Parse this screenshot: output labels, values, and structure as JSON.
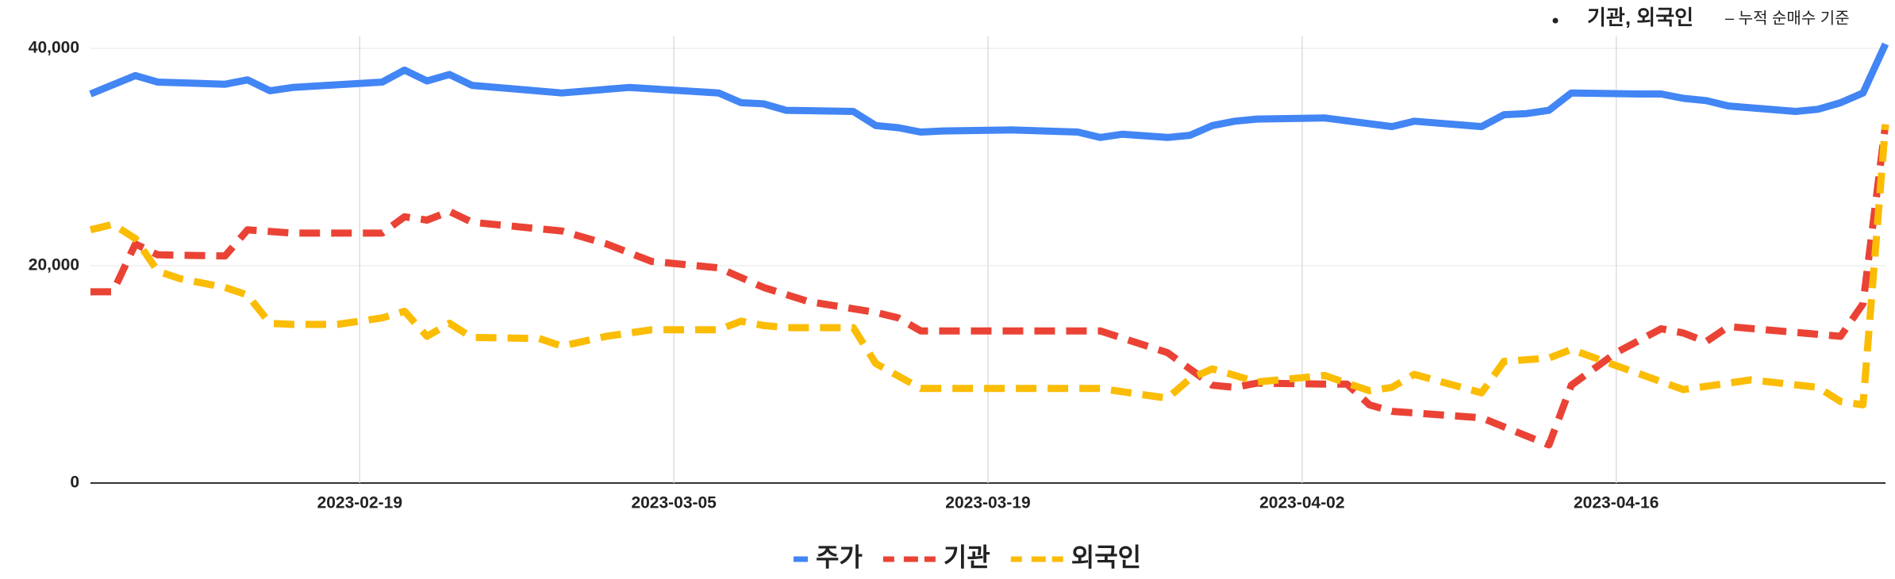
{
  "chart_data": {
    "type": "line",
    "annotation": {
      "label": "기관, 외국인",
      "note": "– 누적 순매수 기준"
    },
    "xlim": [
      "2023-02-07",
      "2023-04-28"
    ],
    "xticks": [
      "2023-02-19",
      "2023-03-05",
      "2023-03-19",
      "2023-04-02",
      "2023-04-16"
    ],
    "ylim": [
      0,
      40000
    ],
    "yticks": [
      {
        "value": 0,
        "label": "0"
      },
      {
        "value": 20000,
        "label": "20,000"
      },
      {
        "value": 40000,
        "label": "40,000"
      }
    ],
    "grid": true,
    "legend": "bottom",
    "series": [
      {
        "name": "주가",
        "color": "#4285f4",
        "dash": false,
        "x": [
          "2023-02-07",
          "2023-02-09",
          "2023-02-10",
          "2023-02-13",
          "2023-02-14",
          "2023-02-15",
          "2023-02-16",
          "2023-02-20",
          "2023-02-21",
          "2023-02-22",
          "2023-02-23",
          "2023-02-24",
          "2023-02-28",
          "2023-03-03",
          "2023-03-07",
          "2023-03-08",
          "2023-03-09",
          "2023-03-10",
          "2023-03-13",
          "2023-03-14",
          "2023-03-15",
          "2023-03-16",
          "2023-03-17",
          "2023-03-20",
          "2023-03-23",
          "2023-03-24",
          "2023-03-25",
          "2023-03-27",
          "2023-03-28",
          "2023-03-29",
          "2023-03-30",
          "2023-03-31",
          "2023-04-03",
          "2023-04-06",
          "2023-04-07",
          "2023-04-10",
          "2023-04-11",
          "2023-04-12",
          "2023-04-13",
          "2023-04-14",
          "2023-04-17",
          "2023-04-18",
          "2023-04-19",
          "2023-04-20",
          "2023-04-21",
          "2023-04-24",
          "2023-04-25",
          "2023-04-26",
          "2023-04-27",
          "2023-04-28"
        ],
        "values": [
          35800,
          37500,
          36900,
          36700,
          37100,
          36100,
          36400,
          36900,
          38000,
          37000,
          37600,
          36600,
          35900,
          36400,
          35900,
          35000,
          34900,
          34300,
          34200,
          32900,
          32700,
          32300,
          32400,
          32500,
          32300,
          31800,
          32100,
          31800,
          32000,
          32900,
          33300,
          33500,
          33600,
          32800,
          33300,
          32800,
          33900,
          34000,
          34300,
          35900,
          35800,
          35800,
          35400,
          35200,
          34700,
          34200,
          34400,
          35000,
          35900,
          40400
        ]
      },
      {
        "name": "기관",
        "color": "#ea4335",
        "dash": true,
        "x": [
          "2023-02-07",
          "2023-02-08",
          "2023-02-09",
          "2023-02-10",
          "2023-02-13",
          "2023-02-14",
          "2023-02-16",
          "2023-02-20",
          "2023-02-21",
          "2023-02-22",
          "2023-02-23",
          "2023-02-24",
          "2023-02-28",
          "2023-03-02",
          "2023-03-04",
          "2023-03-07",
          "2023-03-09",
          "2023-03-11",
          "2023-03-14",
          "2023-03-15",
          "2023-03-16",
          "2023-03-24",
          "2023-03-27",
          "2023-03-29",
          "2023-03-30",
          "2023-03-31",
          "2023-04-03",
          "2023-04-04",
          "2023-04-05",
          "2023-04-06",
          "2023-04-10",
          "2023-04-13",
          "2023-04-14",
          "2023-04-16",
          "2023-04-18",
          "2023-04-19",
          "2023-04-20",
          "2023-04-21",
          "2023-04-26",
          "2023-04-27",
          "2023-04-28"
        ],
        "values": [
          17600,
          17600,
          22000,
          21000,
          20900,
          23300,
          23000,
          23000,
          24500,
          24200,
          25000,
          24000,
          23200,
          22000,
          20400,
          19800,
          18000,
          16700,
          15700,
          15200,
          14000,
          14000,
          12000,
          9000,
          8800,
          9200,
          9100,
          9100,
          7200,
          6600,
          6000,
          3500,
          9000,
          12000,
          14200,
          13800,
          13000,
          14400,
          13500,
          16500,
          33000
        ]
      },
      {
        "name": "외국인",
        "color": "#fbbc04",
        "dash": true,
        "x": [
          "2023-02-07",
          "2023-02-08",
          "2023-02-09",
          "2023-02-10",
          "2023-02-11",
          "2023-02-13",
          "2023-02-14",
          "2023-02-15",
          "2023-02-16",
          "2023-02-18",
          "2023-02-20",
          "2023-02-21",
          "2023-02-22",
          "2023-02-23",
          "2023-02-24",
          "2023-02-27",
          "2023-02-28",
          "2023-03-02",
          "2023-03-04",
          "2023-03-07",
          "2023-03-08",
          "2023-03-09",
          "2023-03-10",
          "2023-03-13",
          "2023-03-14",
          "2023-03-16",
          "2023-03-24",
          "2023-03-27",
          "2023-03-28",
          "2023-03-29",
          "2023-03-31",
          "2023-04-03",
          "2023-04-05",
          "2023-04-06",
          "2023-04-07",
          "2023-04-10",
          "2023-04-11",
          "2023-04-13",
          "2023-04-14",
          "2023-04-16",
          "2023-04-19",
          "2023-04-20",
          "2023-04-22",
          "2023-04-25",
          "2023-04-26",
          "2023-04-27",
          "2023-04-28"
        ],
        "values": [
          23300,
          23800,
          22500,
          19500,
          18800,
          18000,
          17300,
          14700,
          14600,
          14600,
          15200,
          15800,
          13500,
          14700,
          13400,
          13300,
          12600,
          13500,
          14100,
          14100,
          14900,
          14500,
          14300,
          14300,
          11000,
          8700,
          8700,
          7800,
          9600,
          10500,
          9300,
          9900,
          8500,
          8800,
          10000,
          8300,
          11200,
          11500,
          12300,
          10800,
          8600,
          8900,
          9500,
          8800,
          7500,
          7200,
          33000
        ]
      }
    ]
  }
}
